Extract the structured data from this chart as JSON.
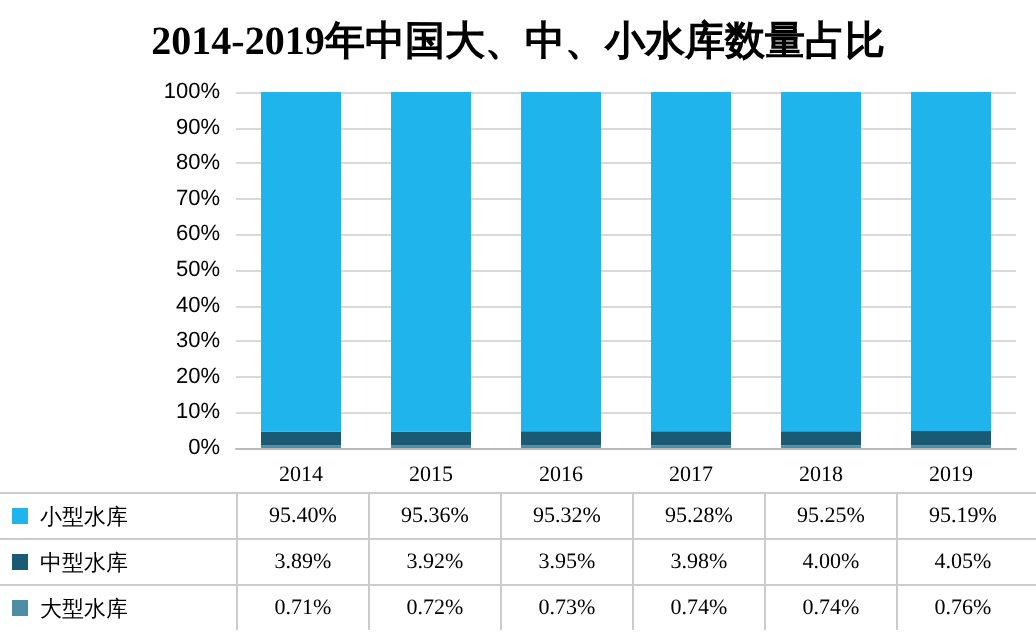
{
  "chart_data": {
    "type": "bar",
    "title": "2014-2019年中国大、中、小水库数量占比",
    "stacked": true,
    "categories": [
      "2014",
      "2015",
      "2016",
      "2017",
      "2018",
      "2019"
    ],
    "series": [
      {
        "name": "大型水库",
        "color": "#4f8ca6",
        "values": [
          0.71,
          0.72,
          0.73,
          0.74,
          0.74,
          0.76
        ],
        "value_labels": [
          "0.71%",
          "0.72%",
          "0.73%",
          "0.74%",
          "0.74%",
          "0.76%"
        ]
      },
      {
        "name": "中型水库",
        "color": "#1b5a73",
        "values": [
          3.89,
          3.92,
          3.95,
          3.98,
          4.0,
          4.05
        ],
        "value_labels": [
          "3.89%",
          "3.92%",
          "3.95%",
          "3.98%",
          "4.00%",
          "4.05%"
        ]
      },
      {
        "name": "小型水库",
        "color": "#1fb5ec",
        "values": [
          95.4,
          95.36,
          95.32,
          95.28,
          95.25,
          95.19
        ],
        "value_labels": [
          "95.40%",
          "95.36%",
          "95.32%",
          "95.28%",
          "95.25%",
          "95.19%"
        ]
      }
    ],
    "ylim": [
      0,
      100
    ],
    "yticks": [
      {
        "value": 0,
        "label": "0%"
      },
      {
        "value": 10,
        "label": "10%"
      },
      {
        "value": 20,
        "label": "20%"
      },
      {
        "value": 30,
        "label": "30%"
      },
      {
        "value": 40,
        "label": "40%"
      },
      {
        "value": 50,
        "label": "50%"
      },
      {
        "value": 60,
        "label": "60%"
      },
      {
        "value": 70,
        "label": "70%"
      },
      {
        "value": 80,
        "label": "80%"
      },
      {
        "value": 90,
        "label": "90%"
      },
      {
        "value": 100,
        "label": "100%"
      }
    ],
    "grid": "y",
    "legend": "bottom left"
  }
}
